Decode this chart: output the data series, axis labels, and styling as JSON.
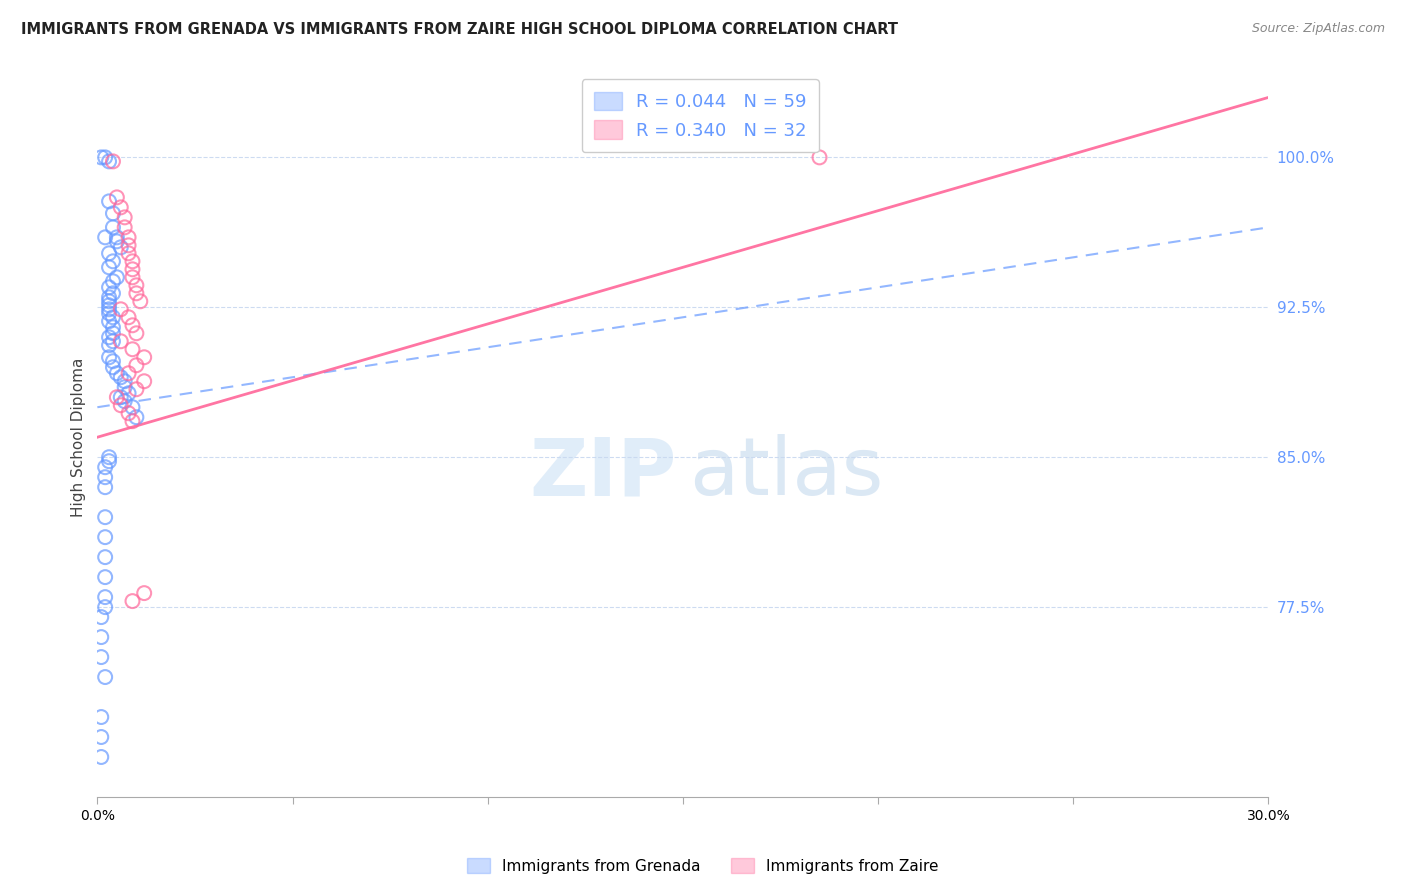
{
  "title": "IMMIGRANTS FROM GRENADA VS IMMIGRANTS FROM ZAIRE HIGH SCHOOL DIPLOMA CORRELATION CHART",
  "source": "Source: ZipAtlas.com",
  "ylabel": "High School Diploma",
  "xlim": [
    0.0,
    0.3
  ],
  "ylim": [
    0.68,
    1.04
  ],
  "ytick_values": [
    1.0,
    0.925,
    0.85,
    0.775
  ],
  "ytick_labels": [
    "100.0%",
    "92.5%",
    "85.0%",
    "77.5%"
  ],
  "legend_r1": "R = 0.044",
  "legend_n1": "N = 59",
  "legend_r2": "R = 0.340",
  "legend_n2": "N = 32",
  "color_blue": "#6699ff",
  "color_pink": "#ff6699",
  "watermark_zip": "ZIP",
  "watermark_atlas": "atlas",
  "trend_blue_x0": 0.0,
  "trend_blue_y0": 0.875,
  "trend_blue_x1": 0.3,
  "trend_blue_y1": 0.965,
  "trend_pink_x0": 0.0,
  "trend_pink_y0": 0.86,
  "trend_pink_x1": 0.3,
  "trend_pink_y1": 1.03,
  "grenada_x": [
    0.001,
    0.002,
    0.003,
    0.003,
    0.004,
    0.004,
    0.005,
    0.005,
    0.006,
    0.003,
    0.004,
    0.003,
    0.005,
    0.004,
    0.003,
    0.004,
    0.003,
    0.003,
    0.003,
    0.003,
    0.003,
    0.004,
    0.003,
    0.004,
    0.004,
    0.003,
    0.004,
    0.003,
    0.003,
    0.004,
    0.004,
    0.005,
    0.006,
    0.007,
    0.007,
    0.008,
    0.006,
    0.007,
    0.009,
    0.01,
    0.003,
    0.003,
    0.002,
    0.002,
    0.002,
    0.002,
    0.002,
    0.002,
    0.002,
    0.002,
    0.002,
    0.001,
    0.001,
    0.001,
    0.002,
    0.001,
    0.001,
    0.001,
    0.002
  ],
  "grenada_y": [
    1.0,
    1.0,
    0.998,
    0.978,
    0.972,
    0.965,
    0.96,
    0.958,
    0.955,
    0.952,
    0.948,
    0.945,
    0.94,
    0.938,
    0.935,
    0.932,
    0.93,
    0.928,
    0.926,
    0.924,
    0.922,
    0.92,
    0.918,
    0.915,
    0.912,
    0.91,
    0.908,
    0.906,
    0.9,
    0.898,
    0.895,
    0.892,
    0.89,
    0.888,
    0.885,
    0.882,
    0.88,
    0.878,
    0.875,
    0.87,
    0.85,
    0.848,
    0.845,
    0.84,
    0.835,
    0.82,
    0.81,
    0.8,
    0.79,
    0.78,
    0.775,
    0.77,
    0.76,
    0.75,
    0.74,
    0.72,
    0.71,
    0.7,
    0.96
  ],
  "zaire_x": [
    0.004,
    0.005,
    0.006,
    0.007,
    0.007,
    0.008,
    0.008,
    0.008,
    0.009,
    0.009,
    0.009,
    0.01,
    0.01,
    0.011,
    0.006,
    0.008,
    0.009,
    0.01,
    0.006,
    0.009,
    0.012,
    0.01,
    0.008,
    0.012,
    0.01,
    0.005,
    0.006,
    0.008,
    0.009,
    0.185,
    0.012,
    0.009
  ],
  "zaire_y": [
    0.998,
    0.98,
    0.975,
    0.97,
    0.965,
    0.96,
    0.956,
    0.952,
    0.948,
    0.944,
    0.94,
    0.936,
    0.932,
    0.928,
    0.924,
    0.92,
    0.916,
    0.912,
    0.908,
    0.904,
    0.9,
    0.896,
    0.892,
    0.888,
    0.884,
    0.88,
    0.876,
    0.872,
    0.868,
    1.0,
    0.782,
    0.778
  ]
}
